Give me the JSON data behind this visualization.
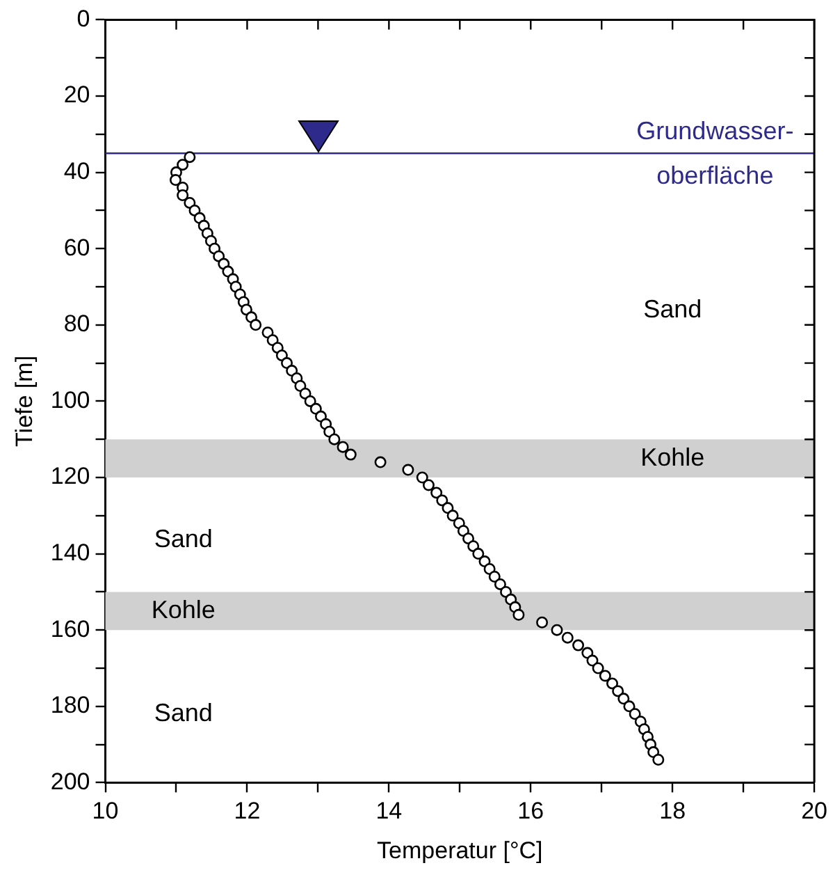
{
  "chart_data": {
    "type": "scatter",
    "xlabel": "Temperatur [°C]",
    "ylabel": "Tiefe [m]",
    "x": [
      11.19,
      11.09,
      11.0,
      10.99,
      11.09,
      11.09,
      11.19,
      11.26,
      11.33,
      11.39,
      11.44,
      11.49,
      11.54,
      11.6,
      11.67,
      11.73,
      11.8,
      11.84,
      11.9,
      11.95,
      11.99,
      12.06,
      12.12,
      12.29,
      12.36,
      12.43,
      12.49,
      12.56,
      12.63,
      12.7,
      12.75,
      12.82,
      12.89,
      12.97,
      13.04,
      13.11,
      13.16,
      13.23,
      13.35,
      13.46,
      13.88,
      14.27,
      14.47,
      14.56,
      14.67,
      14.75,
      14.83,
      14.9,
      14.99,
      15.05,
      15.12,
      15.19,
      15.26,
      15.35,
      15.42,
      15.49,
      15.57,
      15.65,
      15.72,
      15.78,
      15.83,
      16.16,
      16.37,
      16.52,
      16.67,
      16.8,
      16.87,
      16.95,
      17.05,
      17.15,
      17.23,
      17.31,
      17.39,
      17.47,
      17.55,
      17.6,
      17.65,
      17.69,
      17.73,
      17.8
    ],
    "series": [
      {
        "color": "#000000",
        "values": [
          36,
          38,
          40,
          42,
          44,
          46,
          48,
          50,
          52,
          54,
          56,
          58,
          60,
          62,
          64,
          66,
          68,
          70,
          72,
          74,
          76,
          78,
          80,
          82,
          84,
          86,
          88,
          90,
          92,
          94,
          96,
          98,
          100,
          102,
          104,
          106,
          108,
          110,
          112,
          114,
          116,
          118,
          120,
          122,
          124,
          126,
          128,
          130,
          132,
          134,
          136,
          138,
          140,
          142,
          144,
          146,
          148,
          150,
          152,
          154,
          156,
          158,
          160,
          162,
          164,
          166,
          168,
          170,
          172,
          174,
          176,
          178,
          180,
          182,
          184,
          186,
          188,
          190,
          192,
          194
        ]
      }
    ],
    "xlim": [
      10,
      20
    ],
    "xticks": [
      10,
      {
        "value": 11,
        "label": null
      },
      12,
      {
        "value": 13,
        "label": null
      },
      14,
      {
        "value": 15,
        "label": null
      },
      16,
      {
        "value": 17,
        "label": null
      },
      18,
      {
        "value": 19,
        "label": null
      },
      20
    ],
    "ylim": [
      200,
      0
    ],
    "yticks": [
      0,
      {
        "value": 10,
        "label": null
      },
      20,
      {
        "value": 30,
        "label": null
      },
      40,
      {
        "value": 50,
        "label": null
      },
      60,
      {
        "value": 70,
        "label": null
      },
      80,
      {
        "value": 90,
        "label": null
      },
      100,
      {
        "value": 110,
        "label": null
      },
      120,
      {
        "value": 130,
        "label": null
      },
      140,
      {
        "value": 150,
        "label": null
      },
      160,
      {
        "value": 170,
        "label": null
      },
      180,
      {
        "value": 190,
        "label": null
      },
      200
    ],
    "bands": [
      {
        "axis": "y",
        "from": 110,
        "to": 120,
        "label": "Kohle",
        "color": "#d0d0d0"
      },
      {
        "axis": "y",
        "from": 150,
        "to": 160,
        "label": "Kohle",
        "color": "#d0d0d0"
      }
    ],
    "ref_lines": [
      {
        "axis": "y",
        "value": 35,
        "label": "Grundwasser-\noberfläche",
        "color": "#2e2a8c"
      }
    ],
    "annotations": [
      "Sand",
      "Sand",
      "Sand"
    ],
    "marker": "circle",
    "grid": false,
    "legend": false
  }
}
